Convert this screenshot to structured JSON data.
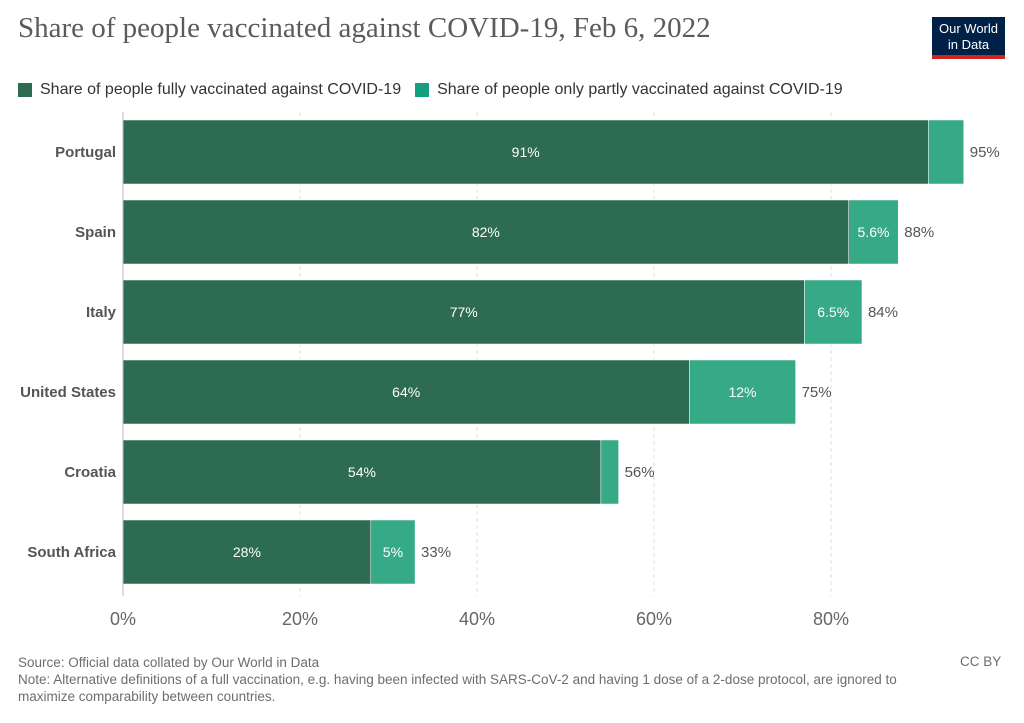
{
  "title": "Share of people vaccinated against COVID-19, Feb 6, 2022",
  "logo": {
    "line1": "Our World",
    "line2": "in Data"
  },
  "legend": [
    {
      "label": "Share of people fully vaccinated against COVID-19",
      "color": "#2d6b52"
    },
    {
      "label": "Share of people only partly vaccinated against COVID-19",
      "color": "#14a07e"
    }
  ],
  "chart_data": {
    "type": "bar",
    "orientation": "horizontal",
    "stacked": true,
    "title": "Share of people vaccinated against COVID-19, Feb 6, 2022",
    "categories": [
      "Portugal",
      "Spain",
      "Italy",
      "United States",
      "Croatia",
      "South Africa"
    ],
    "series": [
      {
        "name": "Share of people fully vaccinated against COVID-19",
        "color": "#2d6b52",
        "values": [
          91,
          82,
          77,
          64,
          54,
          28
        ],
        "labels": [
          "91%",
          "82%",
          "77%",
          "64%",
          "54%",
          "28%"
        ]
      },
      {
        "name": "Share of people only partly vaccinated against COVID-19",
        "color": "#36a986",
        "values": [
          4,
          5.6,
          6.5,
          12,
          2,
          5
        ],
        "labels": [
          "",
          "5.6%",
          "6.5%",
          "12%",
          "",
          "5%"
        ]
      }
    ],
    "totals": [
      "95%",
      "88%",
      "84%",
      "75%",
      "56%",
      "33%"
    ],
    "xlim": [
      0,
      100
    ],
    "xticks": [
      0,
      20,
      40,
      60,
      80
    ],
    "xtick_labels": [
      "0%",
      "20%",
      "40%",
      "60%",
      "80%"
    ],
    "xlabel": "",
    "ylabel": "",
    "grid": "vertical dashed"
  },
  "footer": {
    "source": "Source: Official data collated by Our World in Data",
    "note": "Note: Alternative definitions of a full vaccination, e.g. having been infected with SARS-CoV-2 and having 1 dose of a 2-dose protocol, are ignored to maximize comparability between countries.",
    "license": "CC BY"
  }
}
